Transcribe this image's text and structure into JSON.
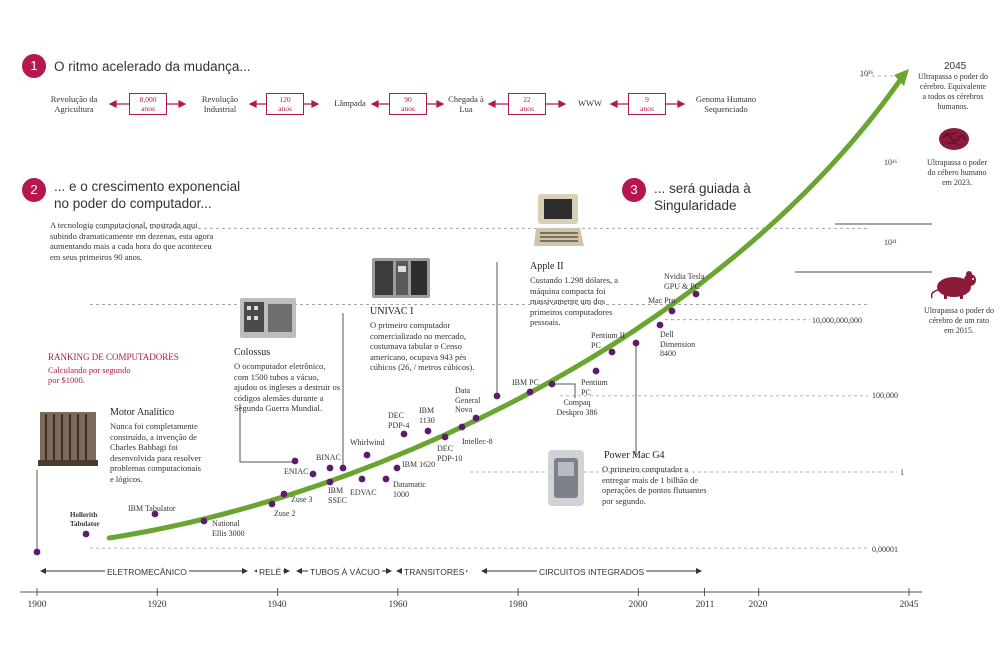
{
  "sections": {
    "s1": {
      "num": "1",
      "title": "O ritmo acelerado da mudança..."
    },
    "s2": {
      "num": "2",
      "title_line1": "... e o crescimento exponencial",
      "title_line2": "no poder do computador..."
    },
    "s3": {
      "num": "3",
      "title_line1": "... será guiada à",
      "title_line2": "Singularidade"
    }
  },
  "pace": {
    "events": [
      "Revolução da Agricultura",
      "Revolução Industrial",
      "Lâmpada",
      "Chegada à Lua",
      "WWW",
      "Genoma Humano Sequenciado"
    ],
    "intervals": [
      {
        "n": "8,000",
        "u": "anos"
      },
      {
        "n": "120",
        "u": "anos"
      },
      {
        "n": "90",
        "u": "anos"
      },
      {
        "n": "22",
        "u": "anos"
      },
      {
        "n": "9",
        "u": "anos"
      }
    ]
  },
  "intro_text": "A tecnologia computacional, mostrada aqui subindo dramaticamente em dezenas, esta agora aumentando mais a cada hora do que aconteceu em seus primeiros 90 anos.",
  "ranking": {
    "title": "RANKING DE COMPUTADORES",
    "subtitle": "Calculando por segundo por $1000."
  },
  "callouts": {
    "motor": {
      "title": "Motor Analítico",
      "text": "Nunca foi completamente construído, a invenção de Charles Babbagi foi desenvolvida para resolver problemas computacionais e lógicos."
    },
    "colossus": {
      "title": "Colossus",
      "text": "O ocomputador eletrônico, com 1500 tubos a vácuo, ajudou os ingleses a destruir os códigos alemães durante a Segunda Guerra Mundial."
    },
    "univac": {
      "title": "UNIVAC I",
      "text": "O primeiro computador comercializado no mercado, costumava tabular o Censo americano, ocupava 943 pés cúbicos (26, / metros cúbicos)."
    },
    "apple": {
      "title": "Apple II",
      "text": "Custando 1.298 dólares, a máquina compacta foi massivamente um dos primeiros computadores pessoais."
    },
    "powermac": {
      "title": "Power Mac G4",
      "text": "O primeiro computador a entregar mais de 1 bilhão de operações de pontos flutuantes por segundo."
    }
  },
  "right_labels": {
    "top_year": "2045",
    "all_brains": "Ultrapassa o poder do cérebro. Equivalente a todos os cérebros humanos.",
    "human_brain": "Ultrapassa o poder do cébero humano em 2023.",
    "mouse_brain": "Ultrapassa o poder do cérebro de um rato em 2015."
  },
  "y_ticks": [
    {
      "label": "10²⁶",
      "value": 1e+26
    },
    {
      "label": "10¹⁶",
      "value": 1e+16
    },
    {
      "label": "10¹¹",
      "value": 100000000000.0
    },
    {
      "label": "10,000,000,000",
      "value": 10000000000.0
    },
    {
      "label": "100,000",
      "value": 100000
    },
    {
      "label": "1",
      "value": 1
    },
    {
      "label": "0,00001",
      "value": 1e-05
    }
  ],
  "eras": [
    "ELETROMECÂNICO",
    "RELÉ",
    "TUBOS À VÁCUO",
    "TRANSITORES",
    "CIRCUITOS INTEGRADOS"
  ],
  "x_ticks": [
    "1900",
    "1920",
    "1940",
    "1960",
    "1980",
    "2000",
    "2011",
    "2020",
    "2045"
  ],
  "colors": {
    "accent": "#b5174f",
    "curve": "#6aa532",
    "points": "#5c1c6b"
  },
  "chart_data": {
    "type": "scatter",
    "title": "",
    "xlabel": "",
    "ylabel": "",
    "x_scale": "linear",
    "y_scale": "log",
    "xlim": [
      1900,
      2045
    ],
    "trend": {
      "name": "",
      "from": [
        1912,
        1e-06
      ],
      "to": [
        2045,
        1e+26
      ]
    },
    "points": [
      {
        "label": "Motor Analítico",
        "x": 1900,
        "y": 1e-06
      },
      {
        "label": "Hollerith Tabulator",
        "x": 1908,
        "y": 2e-06
      },
      {
        "label": "IBM Tabulator",
        "x": 1919,
        "y": 4e-06
      },
      {
        "label": "National Ellis 3000",
        "x": 1928,
        "y": 1e-05
      },
      {
        "label": "Zuse 2",
        "x": 1939,
        "y": 5e-05
      },
      {
        "label": "Zuse 3",
        "x": 1941,
        "y": 0.0001
      },
      {
        "label": "Colossus",
        "x": 1943,
        "y": 0.01
      },
      {
        "label": "ENIAC",
        "x": 1946,
        "y": 0.3
      },
      {
        "label": "IBM SSEC",
        "x": 1948,
        "y": 0.05
      },
      {
        "label": "BINAC",
        "x": 1949,
        "y": 1
      },
      {
        "label": "UNIVAC I",
        "x": 1951,
        "y": 2
      },
      {
        "label": "EDVAC",
        "x": 1952,
        "y": 0.3
      },
      {
        "label": "Whirlwind",
        "x": 1955,
        "y": 10
      },
      {
        "label": "Datamatic 1000",
        "x": 1957,
        "y": 0.5
      },
      {
        "label": "IBM 1620",
        "x": 1959,
        "y": 2
      },
      {
        "label": "DEC PDP-4",
        "x": 1962,
        "y": 100
      },
      {
        "label": "IBM 1130",
        "x": 1966,
        "y": 150
      },
      {
        "label": "DEC PDP-10",
        "x": 1968,
        "y": 80
      },
      {
        "label": "Data General Nova",
        "x": 1969,
        "y": 500
      },
      {
        "label": "Intellec-8",
        "x": 1972,
        "y": 300
      },
      {
        "label": "Apple II",
        "x": 1977,
        "y": 1000
      },
      {
        "label": "IBM PC",
        "x": 1981,
        "y": 50000
      },
      {
        "label": "Compaq Deskpro 386",
        "x": 1986,
        "y": 30000
      },
      {
        "label": "Pentium PC",
        "x": 1994,
        "y": 1000000
      },
      {
        "label": "Pentium II PC",
        "x": 1998,
        "y": 30000000
      },
      {
        "label": "Power Mac G4",
        "x": 2000,
        "y": 300000000
      },
      {
        "label": "Dell Dimension 8400",
        "x": 2004,
        "y": 3000000000
      },
      {
        "label": "Mac Pro",
        "x": 2006,
        "y": 100000000000
      },
      {
        "label": "Nvidia Tesla GPU & PC",
        "x": 2009,
        "y": 1000000000000
      }
    ]
  }
}
